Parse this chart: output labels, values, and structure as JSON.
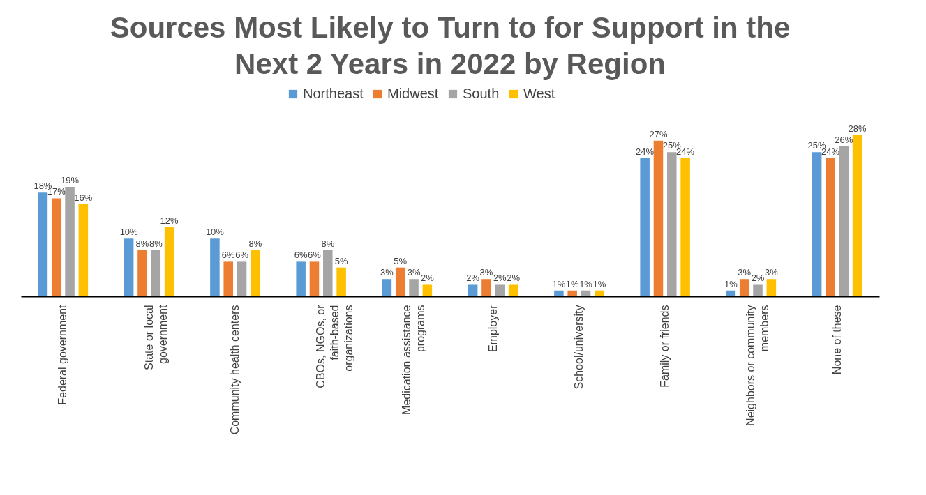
{
  "chart_data": {
    "type": "bar",
    "title": "Sources Most Likely to Turn to for Support in the Next 2 Years in 2022 by Region",
    "categories": [
      "Federal government",
      "State or local government",
      "Community health centers",
      "CBOs, NGOs, or faith-based organizations",
      "Medication assistance programs",
      "Employer",
      "School/university",
      "Family or friends",
      "Neighbors or community members",
      "None of these"
    ],
    "legend": "top",
    "series": [
      {
        "name": "Northeast",
        "color": "#5b9bd5",
        "values": [
          18,
          10,
          10,
          6,
          3,
          2,
          1,
          24,
          1,
          25
        ],
        "value_labels": [
          "18%",
          "10%",
          "10%",
          "6%",
          "3%",
          "2%",
          "1%",
          "24%",
          "1%",
          "25%"
        ]
      },
      {
        "name": "Midwest",
        "color": "#ed7d31",
        "values": [
          17,
          8,
          6,
          6,
          5,
          3,
          1,
          27,
          3,
          24
        ],
        "value_labels": [
          "17%",
          "8%",
          "6%",
          "6%",
          "5%",
          "3%",
          "1%",
          "27%",
          "3%",
          "24%"
        ]
      },
      {
        "name": "South",
        "color": "#a5a5a5",
        "values": [
          19,
          8,
          6,
          8,
          3,
          2,
          1,
          25,
          2,
          26
        ],
        "value_labels": [
          "19%",
          "8%",
          "6%",
          "8%",
          "3%",
          "2%",
          "1%",
          "25%",
          "2%",
          "26%"
        ]
      },
      {
        "name": "West",
        "color": "#ffc000",
        "values": [
          16,
          12,
          8,
          5,
          2,
          2,
          1,
          24,
          3,
          28
        ],
        "value_labels": [
          "16%",
          "12%",
          "8%",
          "5%",
          "2%",
          "2%",
          "1%",
          "24%",
          "3%",
          "28%"
        ]
      }
    ]
  }
}
